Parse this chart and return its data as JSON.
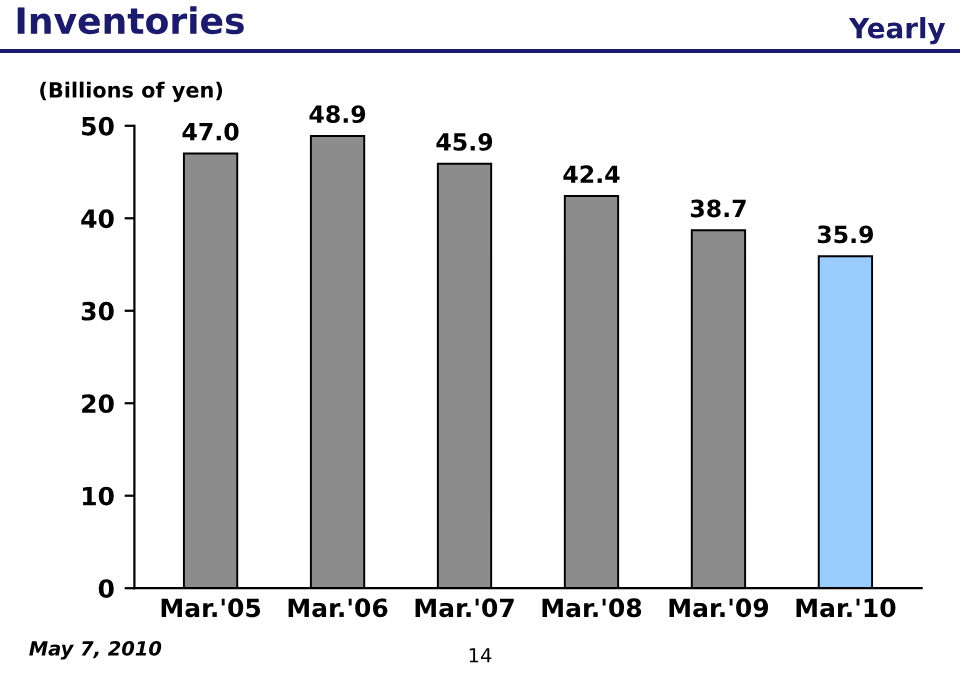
{
  "chart_data": {
    "type": "bar",
    "title": "Inventories",
    "subtitle": "Yearly",
    "ylabel": "(Billions of yen)",
    "categories": [
      "Mar.'05",
      "Mar.'06",
      "Mar.'07",
      "Mar.'08",
      "Mar.'09",
      "Mar.'10"
    ],
    "values": [
      47.0,
      48.9,
      45.9,
      42.4,
      38.7,
      35.9
    ],
    "colors": [
      "#8c8c8c",
      "#8c8c8c",
      "#8c8c8c",
      "#8c8c8c",
      "#8c8c8c",
      "#99ccff"
    ],
    "value_labels": [
      "47.0",
      "48.9",
      "45.9",
      "42.4",
      "38.7",
      "35.9"
    ],
    "ylim": [
      0,
      50
    ],
    "yticks": [
      0,
      10,
      20,
      30,
      40,
      50
    ],
    "grid": false,
    "annotations": [
      "May 7, 2010",
      "14"
    ]
  }
}
